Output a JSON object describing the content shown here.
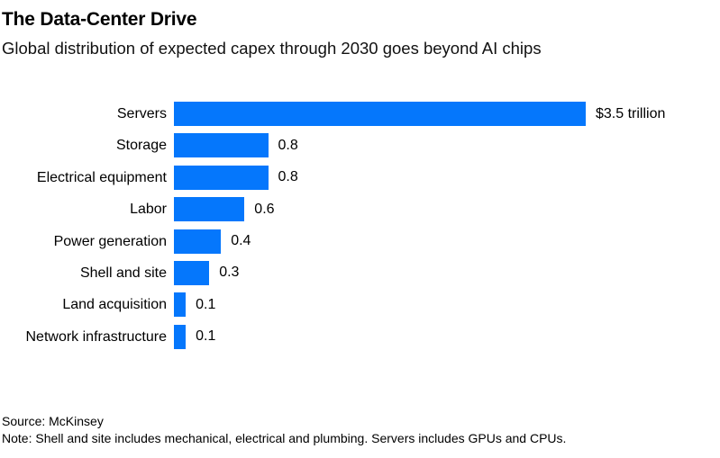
{
  "header": {
    "title": "The Data-Center Drive",
    "subtitle": "Global distribution of expected capex through 2030 goes beyond AI chips"
  },
  "chart_data": {
    "type": "bar",
    "orientation": "horizontal",
    "title": "The Data-Center Drive",
    "subtitle": "Global distribution of expected capex through 2030 goes beyond AI chips",
    "unit": "trillion USD",
    "xlim": [
      0,
      3.5
    ],
    "grid": false,
    "bar_color": "#0577FC",
    "categories": [
      "Servers",
      "Storage",
      "Electrical equipment",
      "Labor",
      "Power generation",
      "Shell and site",
      "Land acquisition",
      "Network infrastructure"
    ],
    "values": [
      3.5,
      0.8,
      0.8,
      0.6,
      0.4,
      0.3,
      0.1,
      0.1
    ],
    "value_labels": [
      "$3.5 trillion",
      "0.8",
      "0.8",
      "0.6",
      "0.4",
      "0.3",
      "0.1",
      "0.1"
    ]
  },
  "footer": {
    "source": "Source: McKinsey",
    "note": "Note: Shell and site includes mechanical, electrical and plumbing. Servers includes GPUs and CPUs."
  }
}
